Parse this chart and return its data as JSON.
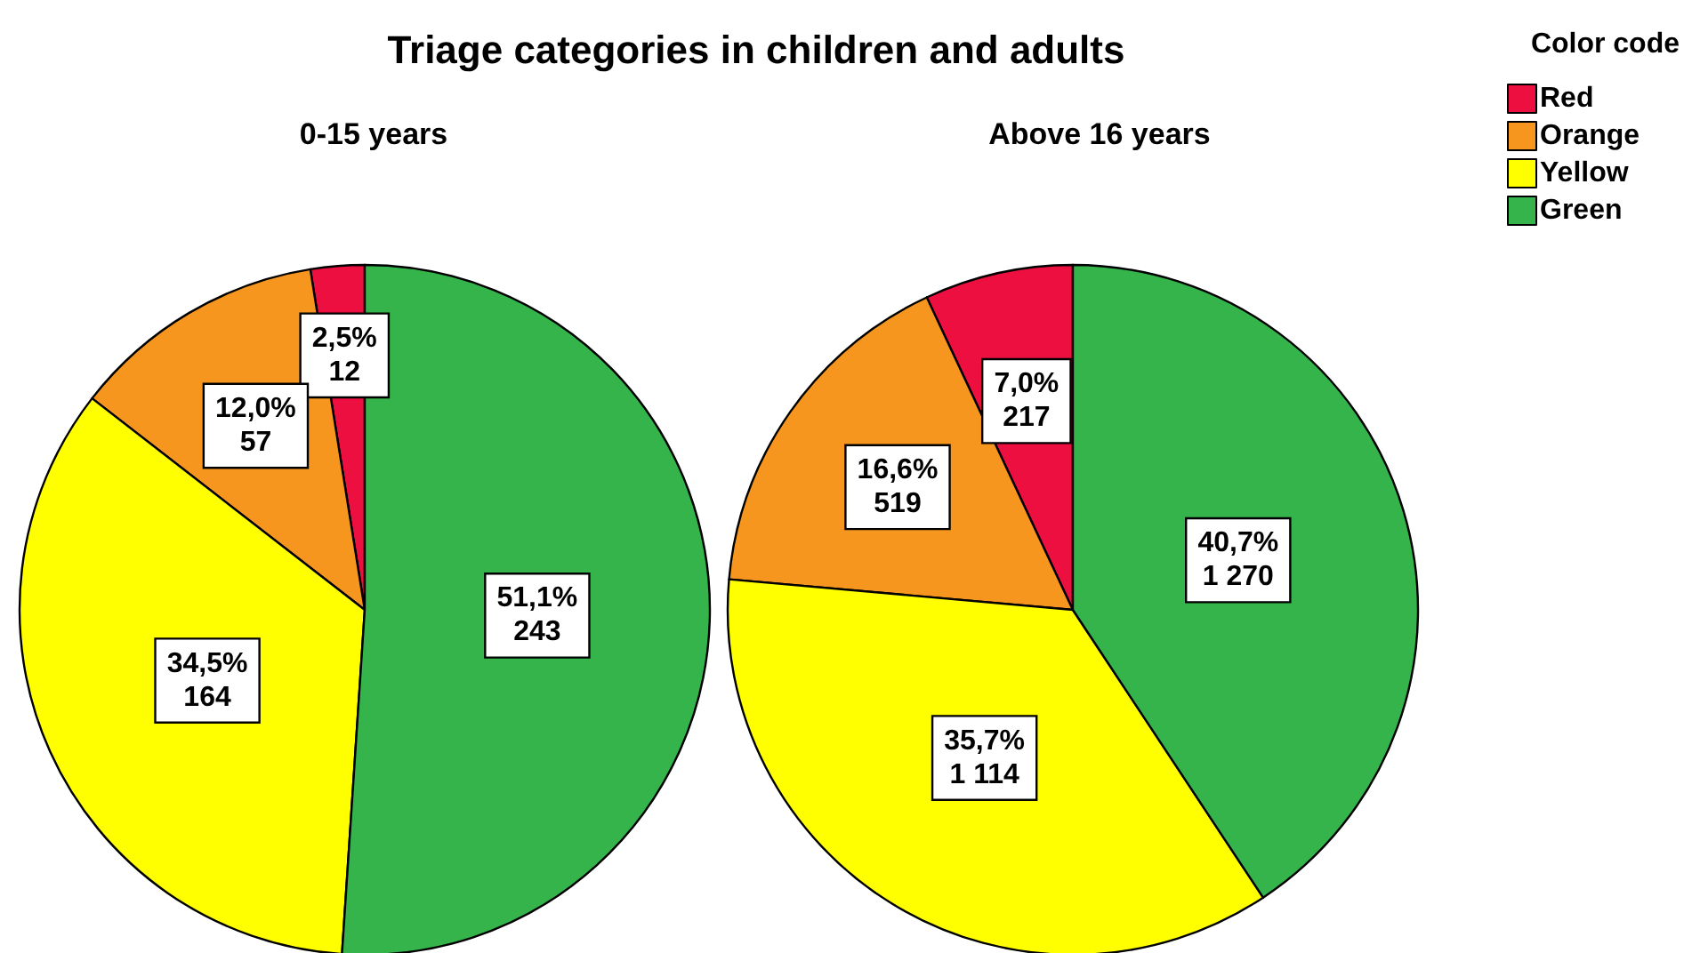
{
  "chart_data": {
    "type": "pie",
    "title": "Triage categories in children and adults",
    "legend_title": "Color code",
    "legend": "top right",
    "categories": [
      "Red",
      "Orange",
      "Yellow",
      "Green"
    ],
    "colors": [
      "#ed0f3f",
      "#f7961e",
      "#ffff00",
      "#34b44a"
    ],
    "series": [
      {
        "name": "0-15 years",
        "values": [
          12,
          57,
          164,
          243
        ],
        "value_labels": [
          "2,5%\n12",
          "12,0%\n57",
          "34,5%\n164",
          "51,1%\n243"
        ]
      },
      {
        "name": "Above 16 years",
        "values": [
          217,
          519,
          1114,
          1270
        ],
        "value_labels": [
          "7,0%\n217",
          "16,6%\n519",
          "35,7%\n1 114",
          "40,7%\n1 270"
        ]
      }
    ]
  }
}
